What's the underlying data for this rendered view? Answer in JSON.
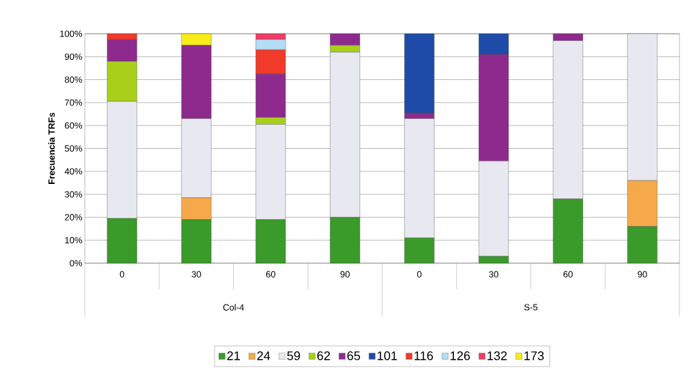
{
  "chart_data": {
    "type": "bar",
    "stacked": true,
    "ylabel": "Frecuencia TRFs",
    "categories": [
      "0",
      "30",
      "60",
      "90",
      "0",
      "30",
      "60",
      "90"
    ],
    "annotations": [
      "Col-4",
      "S-5"
    ],
    "ylim": [
      0,
      100
    ],
    "yticks": [
      {
        "value": 0,
        "label": "0%"
      },
      {
        "value": 10,
        "label": "10%"
      },
      {
        "value": 20,
        "label": "20%"
      },
      {
        "value": 30,
        "label": "30%"
      },
      {
        "value": 40,
        "label": "40%"
      },
      {
        "value": 50,
        "label": "50%"
      },
      {
        "value": 60,
        "label": "60%"
      },
      {
        "value": 70,
        "label": "70%"
      },
      {
        "value": 80,
        "label": "80%"
      },
      {
        "value": 90,
        "label": "90%"
      },
      {
        "value": 100,
        "label": "100%"
      }
    ],
    "grid": "y",
    "legend": "bottom",
    "series": [
      {
        "name": "21",
        "color": "#3a9a2a",
        "values": [
          19.5,
          19,
          19,
          20,
          11,
          3,
          28,
          16
        ]
      },
      {
        "name": "24",
        "color": "#f5a94a",
        "values": [
          0,
          9.5,
          0,
          0,
          0,
          0,
          0,
          20
        ]
      },
      {
        "name": "59",
        "color": "#e8e8f0",
        "values": [
          51,
          34.5,
          41.5,
          72,
          52,
          41.5,
          69,
          64
        ]
      },
      {
        "name": "62",
        "color": "#a8d01a",
        "values": [
          17.5,
          0,
          3,
          3,
          0,
          0,
          0,
          0
        ]
      },
      {
        "name": "65",
        "color": "#8e2a8e",
        "values": [
          9.5,
          32,
          19,
          5,
          2.5,
          46.5,
          3,
          0
        ]
      },
      {
        "name": "101",
        "color": "#1e4aa8",
        "values": [
          0,
          0,
          0,
          0,
          34.5,
          9,
          0,
          0
        ]
      },
      {
        "name": "116",
        "color": "#f03a2a",
        "values": [
          2.5,
          0,
          10.5,
          0,
          0,
          0,
          0,
          0
        ]
      },
      {
        "name": "126",
        "color": "#b4dcf4",
        "values": [
          0,
          0,
          4.5,
          0,
          0,
          0,
          0,
          0
        ]
      },
      {
        "name": "132",
        "color": "#f03c64",
        "values": [
          0,
          0,
          2.5,
          0,
          0,
          0,
          0,
          0
        ]
      },
      {
        "name": "173",
        "color": "#f8ec1a",
        "values": [
          0,
          5,
          0,
          0,
          0,
          0,
          0,
          0
        ]
      }
    ]
  }
}
